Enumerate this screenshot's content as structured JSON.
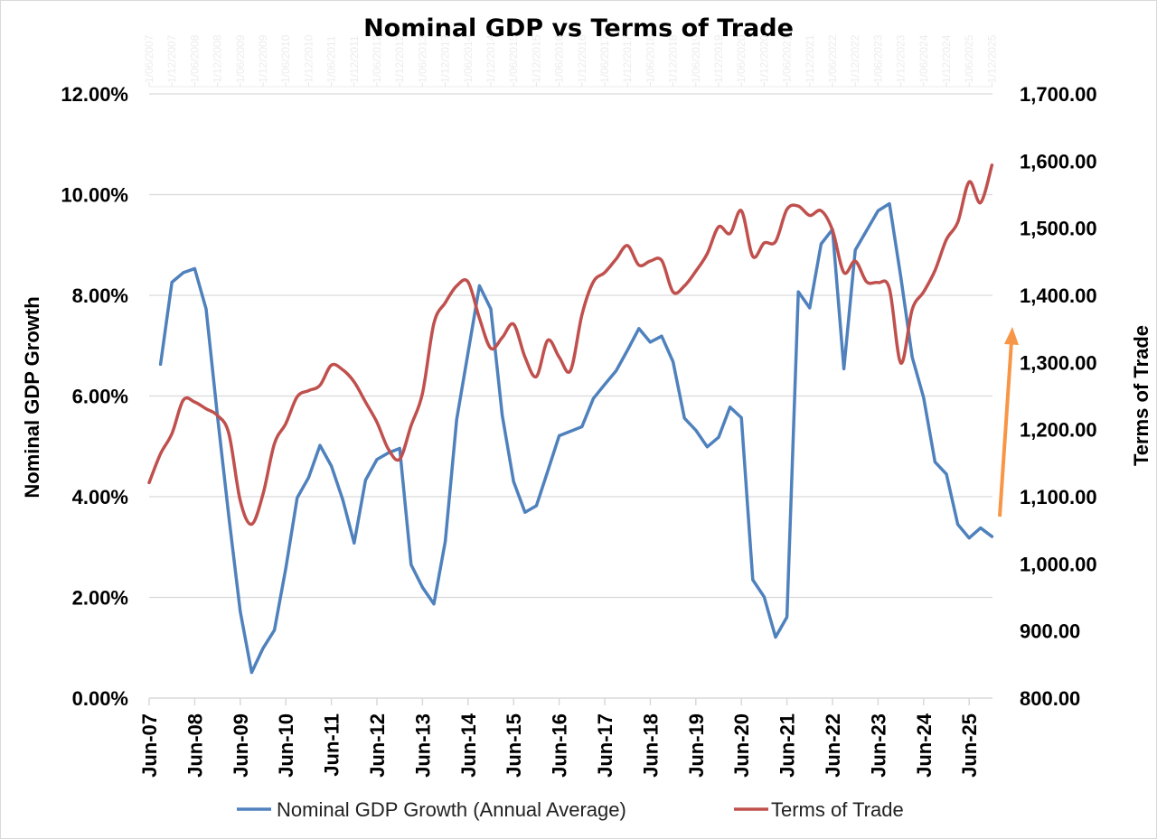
{
  "chart_data": {
    "type": "line",
    "title": "Nominal GDP vs Terms of Trade",
    "ylabel_left": "Nominal GDP Growth",
    "ylabel_right": "Terms of Trade",
    "ylim_left": [
      0,
      12
    ],
    "ylim_right": [
      800,
      1700
    ],
    "yticks_left": [
      "0.00%",
      "2.00%",
      "4.00%",
      "6.00%",
      "8.00%",
      "10.00%",
      "12.00%"
    ],
    "yticks_right": [
      "800.00",
      "900.00",
      "1,000.00",
      "1,100.00",
      "1,200.00",
      "1,300.00",
      "1,400.00",
      "1,500.00",
      "1,600.00",
      "1,700.00"
    ],
    "xtick_labels": [
      "Jun-07",
      "Jun-08",
      "Jun-09",
      "Jun-10",
      "Jun-11",
      "Jun-12",
      "Jun-13",
      "Jun-14",
      "Jun-15",
      "Jun-16",
      "Jun-17",
      "Jun-18",
      "Jun-19",
      "Jun-20",
      "Jun-21",
      "Jun-22",
      "Jun-23",
      "Jun-24",
      "Jun-25"
    ],
    "top_axis_labels": [
      "1/06/2007",
      "1/12/2007",
      "1/06/2008",
      "1/12/2008",
      "1/06/2009",
      "1/12/2009",
      "1/06/2010",
      "1/12/2010",
      "1/06/2011",
      "1/12/2011",
      "1/06/2012",
      "1/12/2012",
      "1/06/2013",
      "1/12/2013",
      "1/06/2014",
      "1/12/2014",
      "1/06/2015",
      "1/12/2015",
      "1/06/2016",
      "1/12/2016",
      "1/06/2017",
      "1/12/2017",
      "1/06/2018",
      "1/12/2018",
      "1/06/2019",
      "1/12/2019",
      "1/06/2020",
      "1/12/2020",
      "1/06/2021",
      "1/12/2021",
      "1/06/2022",
      "1/12/2022",
      "1/06/2023",
      "1/12/2023",
      "1/06/2024",
      "1/12/2024",
      "1/06/2025",
      "1/12/2025"
    ],
    "x": [
      "Jun-07",
      "Sep-07",
      "Dec-07",
      "Mar-08",
      "Jun-08",
      "Sep-08",
      "Dec-08",
      "Mar-09",
      "Jun-09",
      "Sep-09",
      "Dec-09",
      "Mar-10",
      "Jun-10",
      "Sep-10",
      "Dec-10",
      "Mar-11",
      "Jun-11",
      "Sep-11",
      "Dec-11",
      "Mar-12",
      "Jun-12",
      "Sep-12",
      "Dec-12",
      "Mar-13",
      "Jun-13",
      "Sep-13",
      "Dec-13",
      "Mar-14",
      "Jun-14",
      "Sep-14",
      "Dec-14",
      "Mar-15",
      "Jun-15",
      "Sep-15",
      "Dec-15",
      "Mar-16",
      "Jun-16",
      "Sep-16",
      "Dec-16",
      "Mar-17",
      "Jun-17",
      "Sep-17",
      "Dec-17",
      "Mar-18",
      "Jun-18",
      "Sep-18",
      "Dec-18",
      "Mar-19",
      "Jun-19",
      "Sep-19",
      "Dec-19",
      "Mar-20",
      "Jun-20",
      "Sep-20",
      "Dec-20",
      "Mar-21",
      "Jun-21",
      "Sep-21",
      "Dec-21",
      "Mar-22",
      "Jun-22",
      "Sep-22",
      "Dec-22",
      "Mar-23",
      "Jun-23",
      "Sep-23",
      "Dec-23",
      "Mar-24",
      "Jun-24",
      "Sep-24",
      "Dec-24",
      "Mar-25",
      "Jun-25",
      "Sep-25",
      "Dec-25"
    ],
    "series": [
      {
        "name": "Nominal GDP Growth (Annual Average)",
        "axis": "left",
        "color": "#4F81BD",
        "unit": "%",
        "values": [
          null,
          6.63,
          8.26,
          8.45,
          8.53,
          7.73,
          5.6,
          3.6,
          1.72,
          0.51,
          0.99,
          1.35,
          2.58,
          3.98,
          4.38,
          5.02,
          4.61,
          3.94,
          3.08,
          4.33,
          4.74,
          4.87,
          4.96,
          2.65,
          2.2,
          1.87,
          3.11,
          5.53,
          6.86,
          8.19,
          7.73,
          5.62,
          4.3,
          3.69,
          3.82,
          4.51,
          5.21,
          5.3,
          5.39,
          5.95,
          6.23,
          6.5,
          6.91,
          7.34,
          7.07,
          7.19,
          6.68,
          5.56,
          5.32,
          4.99,
          5.18,
          5.78,
          5.57,
          2.35,
          2.01,
          1.21,
          1.61,
          8.07,
          7.75,
          9.02,
          9.31,
          6.54,
          8.9,
          9.29,
          9.68,
          9.82,
          8.36,
          6.77,
          5.97,
          4.69,
          4.45,
          3.45,
          3.18,
          3.38,
          3.21
        ]
      },
      {
        "name": "Terms of Trade",
        "axis": "right",
        "color": "#C0504D",
        "smoothed": true,
        "values": [
          1121,
          1164,
          1194,
          1244,
          1241,
          1231,
          1221,
          1194,
          1094,
          1059,
          1104,
          1179,
          1209,
          1249,
          1258,
          1266,
          1296,
          1289,
          1271,
          1241,
          1211,
          1171,
          1156,
          1206,
          1254,
          1358,
          1389,
          1414,
          1420,
          1366,
          1321,
          1337,
          1357,
          1308,
          1279,
          1333,
          1308,
          1288,
          1371,
          1420,
          1434,
          1454,
          1474,
          1445,
          1451,
          1452,
          1405,
          1414,
          1436,
          1462,
          1502,
          1492,
          1526,
          1458,
          1478,
          1480,
          1528,
          1533,
          1519,
          1526,
          1497,
          1434,
          1451,
          1420,
          1419,
          1410,
          1299,
          1379,
          1405,
          1437,
          1483,
          1509,
          1569,
          1538,
          1594
        ]
      }
    ],
    "annotation": {
      "type": "arrow",
      "direction": "up",
      "color": "#F79646"
    },
    "grid": true,
    "legend": "bottom"
  }
}
